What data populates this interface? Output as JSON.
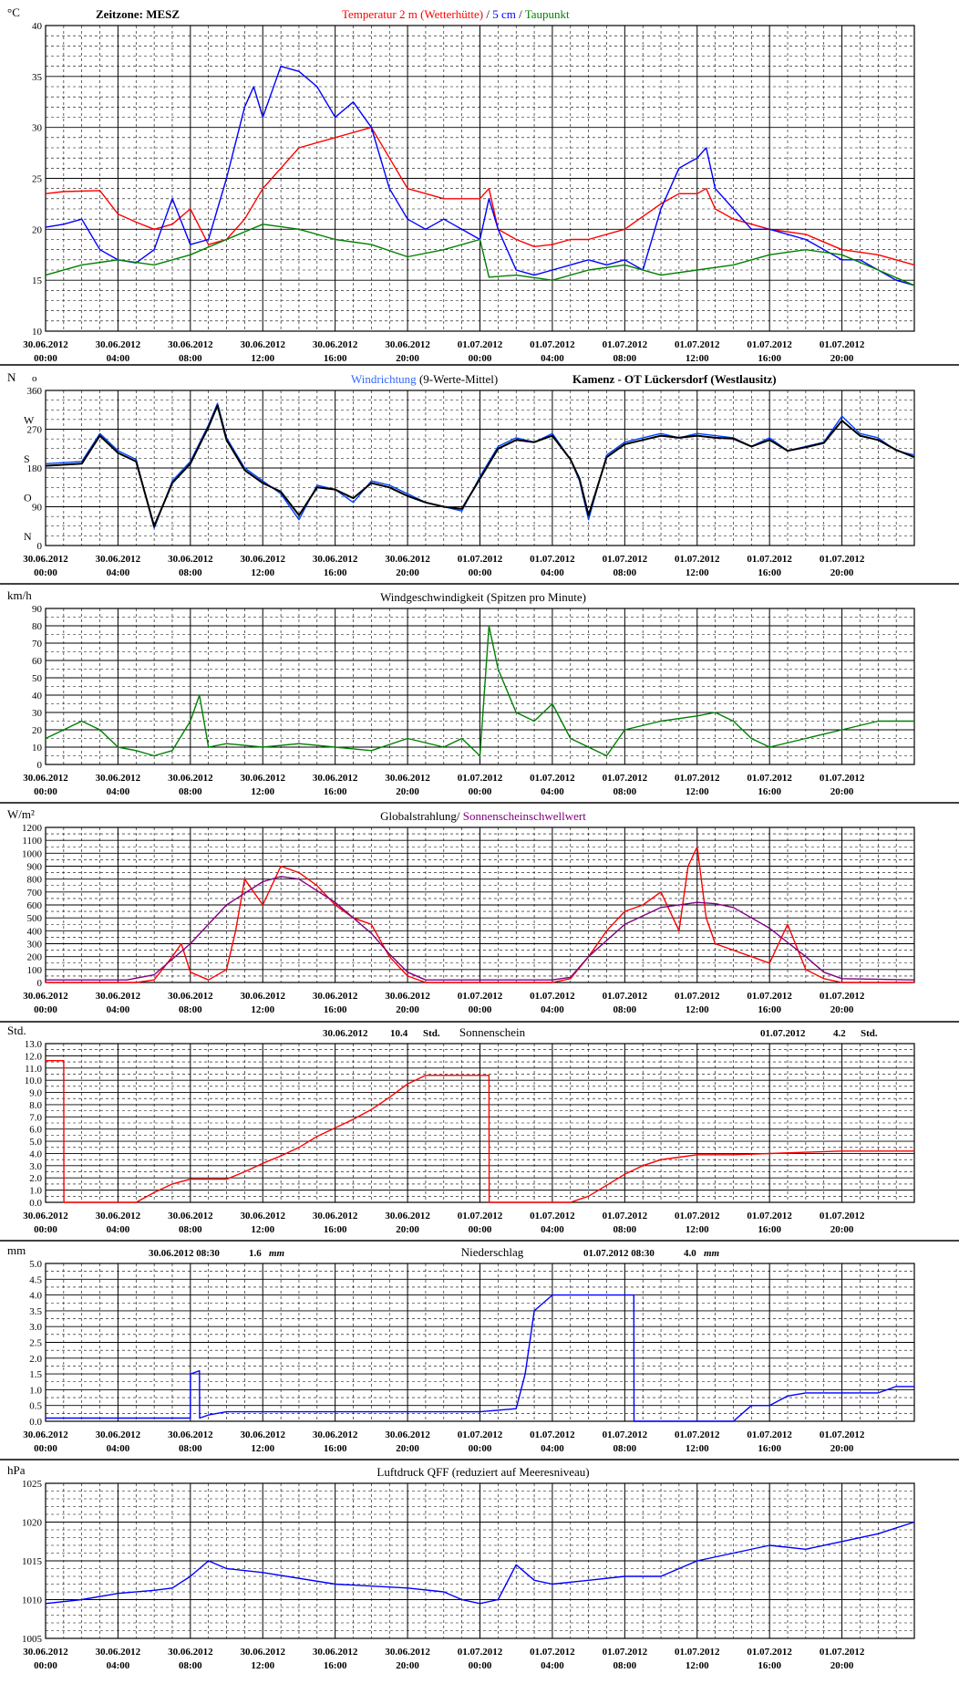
{
  "time_axis": {
    "dates": [
      "30.06.2012",
      "30.06.2012",
      "30.06.2012",
      "30.06.2012",
      "30.06.2012",
      "30.06.2012",
      "01.07.2012",
      "01.07.2012",
      "01.07.2012",
      "01.07.2012",
      "01.07.2012",
      "01.07.2012"
    ],
    "times": [
      "00:00",
      "04:00",
      "08:00",
      "12:00",
      "16:00",
      "20:00",
      "00:00",
      "04:00",
      "08:00",
      "12:00",
      "16:00",
      "20:00"
    ],
    "span_hours": 48
  },
  "chart_data": [
    {
      "id": "temperature",
      "type": "line",
      "unit": "°C",
      "ylim": [
        10,
        40
      ],
      "yticks": [
        "10",
        "15",
        "20",
        "25",
        "30",
        "35",
        "40"
      ],
      "header": {
        "left": "Zeitzone: MESZ",
        "segments": [
          {
            "text": "Temperatur 2 m (Wetterhütte)",
            "color": "#ff0000"
          },
          {
            "text": "  /  ",
            "color": "#000000"
          },
          {
            "text": "5 cm",
            "color": "#0000ff"
          },
          {
            "text": " / ",
            "color": "#000000"
          },
          {
            "text": "Taupunkt",
            "color": "#008000"
          }
        ]
      },
      "series": [
        {
          "name": "Temperatur 2 m (Wetterhütte)",
          "color": "#ff0000",
          "x": [
            0,
            1,
            3,
            4,
            5,
            6,
            7,
            8,
            9,
            10,
            11,
            12,
            14,
            16,
            18,
            20,
            22,
            24,
            24.5,
            25,
            26,
            27,
            28,
            29,
            30,
            32,
            34,
            35,
            36,
            36.5,
            37,
            38,
            40,
            42,
            44,
            46,
            47,
            48
          ],
          "y": [
            23.5,
            23.7,
            23.8,
            21.5,
            20.7,
            20,
            20.5,
            22,
            18.5,
            19,
            21,
            24,
            28,
            29,
            30,
            24,
            23,
            23,
            24,
            20,
            19,
            18.3,
            18.5,
            19,
            19,
            20,
            22.5,
            23.5,
            23.5,
            24,
            22,
            21,
            20,
            19.5,
            18,
            17.5,
            17,
            16.5
          ]
        },
        {
          "name": "5 cm",
          "color": "#0000ff",
          "x": [
            0,
            1,
            2,
            3,
            4,
            5,
            6,
            7,
            8,
            9,
            10,
            11,
            11.5,
            12,
            13,
            14,
            15,
            16,
            17,
            18,
            19,
            20,
            21,
            22,
            23,
            24,
            24.5,
            25,
            26,
            27,
            28,
            29,
            30,
            31,
            32,
            33,
            34,
            35,
            36,
            36.5,
            37,
            38,
            39,
            40,
            42,
            44,
            45,
            46,
            47,
            48
          ],
          "y": [
            20.2,
            20.5,
            21,
            18,
            17,
            16.7,
            18,
            23,
            18.5,
            19,
            25,
            32,
            34,
            31,
            36,
            35.5,
            34,
            31,
            32.5,
            30,
            24,
            21,
            20,
            21,
            20,
            19,
            23,
            20,
            16,
            15.5,
            16,
            16.5,
            17,
            16.5,
            17,
            16,
            22,
            26,
            27,
            28,
            24,
            22,
            20,
            20,
            19,
            17,
            17,
            16,
            15,
            14.5
          ]
        },
        {
          "name": "Taupunkt",
          "color": "#008000",
          "x": [
            0,
            2,
            4,
            6,
            8,
            10,
            12,
            14,
            16,
            18,
            20,
            22,
            24,
            24.5,
            26,
            28,
            30,
            32,
            34,
            36,
            38,
            40,
            42,
            44,
            46,
            48
          ],
          "y": [
            15.5,
            16.5,
            17,
            16.5,
            17.5,
            19,
            20.5,
            20,
            19,
            18.5,
            17.3,
            18,
            19,
            15.3,
            15.5,
            15,
            16,
            16.5,
            15.5,
            16,
            16.5,
            17.5,
            18,
            17.5,
            16,
            14.5
          ]
        }
      ]
    },
    {
      "id": "wind_direction",
      "type": "line",
      "unit": "N",
      "ylim": [
        0,
        360
      ],
      "yticks": [
        "0",
        "90",
        "180",
        "270",
        "360"
      ],
      "compass": [
        "N",
        "O",
        "S",
        "W",
        "N"
      ],
      "header": {
        "segments": [
          {
            "text": "Windrichtung",
            "color": "#3366ff"
          },
          {
            "text": " (9-Werte-Mittel)",
            "color": "#000000"
          }
        ],
        "right": "Kamenz - OT Lückersdorf (Westlausitz)"
      },
      "series": [
        {
          "name": "Windrichtung",
          "color": "#0044ff",
          "x": [
            0,
            2,
            3,
            4,
            5,
            6,
            7,
            8,
            9,
            9.5,
            10,
            11,
            12,
            13,
            14,
            15,
            16,
            17,
            18,
            19,
            20,
            21,
            22,
            23,
            24,
            25,
            26,
            27,
            28,
            29,
            29.5,
            30,
            31,
            32,
            33,
            34,
            35,
            36,
            37,
            38,
            39,
            40,
            41,
            42,
            43,
            44,
            45,
            46,
            47,
            48
          ],
          "y": [
            190,
            195,
            260,
            220,
            200,
            40,
            150,
            195,
            280,
            330,
            250,
            180,
            150,
            120,
            60,
            140,
            130,
            100,
            150,
            140,
            120,
            100,
            90,
            80,
            160,
            230,
            250,
            240,
            260,
            200,
            150,
            60,
            210,
            240,
            250,
            260,
            250,
            260,
            255,
            250,
            230,
            250,
            220,
            230,
            240,
            300,
            260,
            250,
            220,
            210
          ]
        },
        {
          "name": "9-Werte-Mittel",
          "color": "#000000",
          "x": [
            0,
            2,
            3,
            4,
            5,
            6,
            7,
            8,
            9,
            9.5,
            10,
            11,
            12,
            13,
            14,
            15,
            16,
            17,
            18,
            19,
            20,
            21,
            22,
            23,
            24,
            25,
            26,
            27,
            28,
            29,
            29.5,
            30,
            31,
            32,
            33,
            34,
            35,
            36,
            37,
            38,
            39,
            40,
            41,
            42,
            43,
            44,
            45,
            46,
            47,
            48
          ],
          "y": [
            185,
            190,
            255,
            215,
            195,
            45,
            145,
            190,
            275,
            325,
            245,
            175,
            145,
            125,
            70,
            135,
            130,
            110,
            145,
            135,
            115,
            100,
            90,
            85,
            155,
            225,
            245,
            240,
            255,
            200,
            155,
            70,
            205,
            235,
            245,
            255,
            250,
            255,
            250,
            248,
            230,
            245,
            220,
            228,
            238,
            290,
            255,
            245,
            222,
            205
          ]
        }
      ]
    },
    {
      "id": "wind_speed",
      "type": "line",
      "unit": "km/h",
      "ylim": [
        0,
        90
      ],
      "yticks": [
        "0",
        "10",
        "20",
        "30",
        "40",
        "50",
        "60",
        "70",
        "80",
        "90"
      ],
      "header": {
        "segments": [
          {
            "text": "Windgeschwindigkeit (Spitzen pro Minute)",
            "color": "#000000"
          }
        ]
      },
      "series": [
        {
          "name": "Windgeschwindigkeit",
          "color": "#008000",
          "x": [
            0,
            1,
            2,
            3,
            4,
            5,
            6,
            7,
            8,
            8.5,
            9,
            10,
            12,
            14,
            16,
            18,
            20,
            22,
            23,
            24,
            24.5,
            25,
            26,
            27,
            28,
            29,
            30,
            31,
            32,
            34,
            36,
            37,
            38,
            39,
            40,
            42,
            44,
            46,
            48
          ],
          "y": [
            15,
            20,
            25,
            20,
            10,
            8,
            5,
            8,
            25,
            40,
            10,
            12,
            10,
            12,
            10,
            8,
            15,
            10,
            15,
            5,
            80,
            55,
            30,
            25,
            35,
            15,
            10,
            5,
            20,
            25,
            28,
            30,
            25,
            15,
            10,
            15,
            20,
            25,
            25
          ]
        }
      ]
    },
    {
      "id": "radiation",
      "type": "line",
      "unit": "W/m²",
      "ylim": [
        0,
        1200
      ],
      "yticks": [
        "0",
        "100",
        "200",
        "300",
        "400",
        "500",
        "600",
        "700",
        "800",
        "900",
        "1000",
        "1100",
        "1200"
      ],
      "header": {
        "segments": [
          {
            "text": "Globalstrahlung/",
            "color": "#000000"
          },
          {
            "text": " Sonnenscheinschwellwert",
            "color": "#800080"
          }
        ]
      },
      "series": [
        {
          "name": "Globalstrahlung",
          "color": "#ff0000",
          "x": [
            0,
            5,
            6,
            7,
            7.5,
            8,
            9,
            10,
            10.5,
            11,
            12,
            13,
            14,
            15,
            16,
            17,
            18,
            19,
            20,
            21,
            22,
            24,
            28,
            29,
            30,
            31,
            32,
            33,
            34,
            35,
            35.5,
            36,
            36.5,
            37,
            38,
            39,
            40,
            41,
            42,
            43,
            44,
            48
          ],
          "y": [
            0,
            0,
            20,
            200,
            300,
            80,
            20,
            100,
            400,
            800,
            600,
            900,
            850,
            750,
            600,
            500,
            450,
            200,
            50,
            0,
            0,
            0,
            0,
            30,
            200,
            400,
            550,
            600,
            700,
            400,
            900,
            1050,
            500,
            300,
            250,
            200,
            150,
            450,
            100,
            30,
            0,
            0
          ]
        },
        {
          "name": "Sonnenscheinschwellwert",
          "color": "#800080",
          "x": [
            0,
            4.5,
            6,
            8,
            10,
            12,
            13,
            14,
            16,
            18,
            19,
            20,
            21,
            24,
            28,
            29,
            30,
            32,
            34,
            36,
            37,
            38,
            40,
            42,
            43,
            44,
            48
          ],
          "y": [
            20,
            20,
            60,
            300,
            600,
            780,
            820,
            800,
            620,
            380,
            220,
            80,
            20,
            20,
            20,
            40,
            200,
            450,
            580,
            620,
            610,
            580,
            420,
            200,
            80,
            30,
            20
          ]
        }
      ]
    },
    {
      "id": "sunshine",
      "type": "line",
      "unit": "Std.",
      "ylim": [
        0,
        13
      ],
      "yticks": [
        "0.0",
        "1.0",
        "2.0",
        "3.0",
        "4.0",
        "5.0",
        "6.0",
        "7.0",
        "8.0",
        "9.0",
        "10.0",
        "11.0",
        "12.0",
        "13.0"
      ],
      "header": {
        "title": "Sonnenschein",
        "left_date": "30.06.2012",
        "left_value": "10.4",
        "left_unit": "Std.",
        "right_date": "01.07.2012",
        "right_value": "4.2",
        "right_unit": "Std."
      },
      "series": [
        {
          "name": "Sonnenschein",
          "color": "#ff0000",
          "x": [
            0,
            1,
            1.01,
            5,
            6,
            7,
            8,
            9,
            10,
            11,
            12,
            13,
            14,
            15,
            16,
            17,
            18,
            19,
            20,
            21,
            24.5,
            24.51,
            29,
            30,
            31,
            32,
            33,
            34,
            35,
            36,
            38,
            40,
            42,
            44,
            46,
            48
          ],
          "y": [
            11.6,
            11.6,
            0,
            0,
            0.8,
            1.5,
            1.9,
            1.9,
            1.9,
            2.5,
            3.2,
            3.8,
            4.5,
            5.4,
            6.1,
            6.8,
            7.6,
            8.6,
            9.7,
            10.4,
            10.4,
            0,
            0,
            0.5,
            1.4,
            2.3,
            3.0,
            3.5,
            3.7,
            3.9,
            3.9,
            4.0,
            4.1,
            4.2,
            4.2,
            4.2
          ]
        }
      ]
    },
    {
      "id": "precipitation",
      "type": "line",
      "unit": "mm",
      "ylim": [
        0,
        5
      ],
      "yticks": [
        "0.0",
        "0.5",
        "1.0",
        "1.5",
        "2.0",
        "2.5",
        "3.0",
        "3.5",
        "4.0",
        "4.5",
        "5.0"
      ],
      "header": {
        "title": "Niederschlag",
        "left_date": "30.06.2012 08:30",
        "left_value": "1.6",
        "left_unit": "mm",
        "right_date": "01.07.2012 08:30",
        "right_value": "4.0",
        "right_unit": "mm"
      },
      "series": [
        {
          "name": "Niederschlag",
          "color": "#0000ff",
          "x": [
            0,
            8,
            8.01,
            8.5,
            8.51,
            9,
            10,
            12,
            16,
            20,
            24,
            26,
            26.5,
            27,
            28,
            29,
            32.5,
            32.51,
            36,
            38,
            39,
            40,
            41,
            42,
            44,
            46,
            47,
            48
          ],
          "y": [
            0.1,
            0.1,
            1.5,
            1.6,
            0.1,
            0.2,
            0.3,
            0.3,
            0.3,
            0.3,
            0.3,
            0.4,
            1.5,
            3.5,
            4.0,
            4.0,
            4.0,
            0,
            0,
            0,
            0.5,
            0.5,
            0.8,
            0.9,
            0.9,
            0.9,
            1.1,
            1.1
          ]
        }
      ]
    },
    {
      "id": "pressure",
      "type": "line",
      "unit": "hPa",
      "ylim": [
        1005,
        1025
      ],
      "yticks": [
        "1005",
        "1010",
        "1015",
        "1020",
        "1025"
      ],
      "header": {
        "segments": [
          {
            "text": "Luftdruck QFF (reduziert auf Meeresniveau)",
            "color": "#000000"
          }
        ]
      },
      "series": [
        {
          "name": "Luftdruck QFF",
          "color": "#0000ff",
          "x": [
            0,
            2,
            4,
            6,
            7,
            8,
            9,
            10,
            12,
            16,
            20,
            22,
            23,
            24,
            25,
            26,
            27,
            28,
            30,
            32,
            34,
            36,
            38,
            40,
            42,
            44,
            46,
            48
          ],
          "y": [
            1009.5,
            1010,
            1010.8,
            1011.2,
            1011.5,
            1013,
            1015,
            1014,
            1013.5,
            1012,
            1011.5,
            1011,
            1010,
            1009.5,
            1010,
            1014.5,
            1012.5,
            1012,
            1012.5,
            1013,
            1013,
            1015,
            1016,
            1017,
            1016.5,
            1017.5,
            1018.5,
            1020
          ]
        }
      ]
    }
  ]
}
